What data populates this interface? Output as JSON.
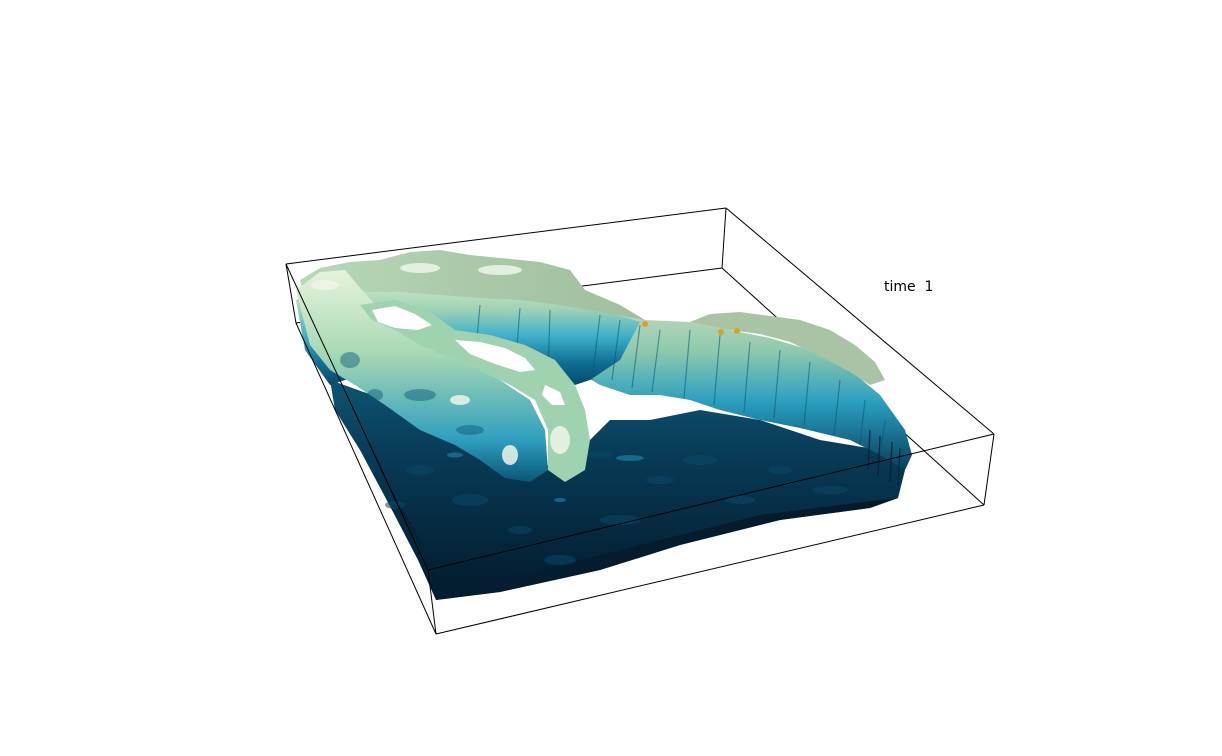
{
  "annotation": {
    "time_label": "time  1"
  },
  "colors": {
    "background": "#ffffff",
    "frame": "#000000",
    "deep": "#02182a",
    "mid_deep": "#06405f",
    "mid": "#168fb6",
    "shallow": "#7fc7a7",
    "top": "#bfe0bd",
    "highlight": "#eef6e8",
    "markers": "#e0a01a"
  }
}
